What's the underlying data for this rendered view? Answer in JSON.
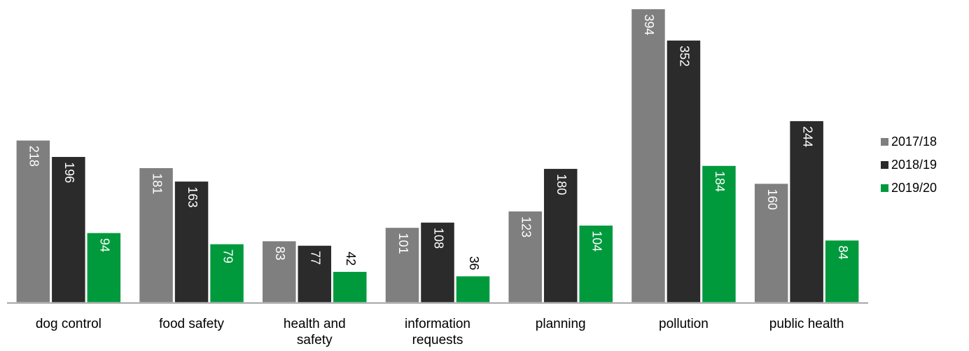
{
  "chart_data": {
    "type": "bar",
    "title": "",
    "xlabel": "",
    "ylabel": "",
    "ylim": [
      0,
      400
    ],
    "grid": false,
    "legend_position": "right",
    "categories": [
      [
        "dog control"
      ],
      [
        "food safety"
      ],
      [
        "health and",
        "safety"
      ],
      [
        "information",
        "requests"
      ],
      [
        "planning"
      ],
      [
        "pollution"
      ],
      [
        "public health"
      ]
    ],
    "series": [
      {
        "name": "2017/18",
        "color": "#7f7f7f",
        "values": [
          218,
          181,
          83,
          101,
          123,
          394,
          160
        ]
      },
      {
        "name": "2018/19",
        "color": "#2b2b2b",
        "values": [
          196,
          163,
          77,
          108,
          180,
          352,
          244
        ]
      },
      {
        "name": "2019/20",
        "color": "#009a3d",
        "values": [
          94,
          79,
          42,
          36,
          104,
          184,
          84
        ]
      }
    ]
  }
}
